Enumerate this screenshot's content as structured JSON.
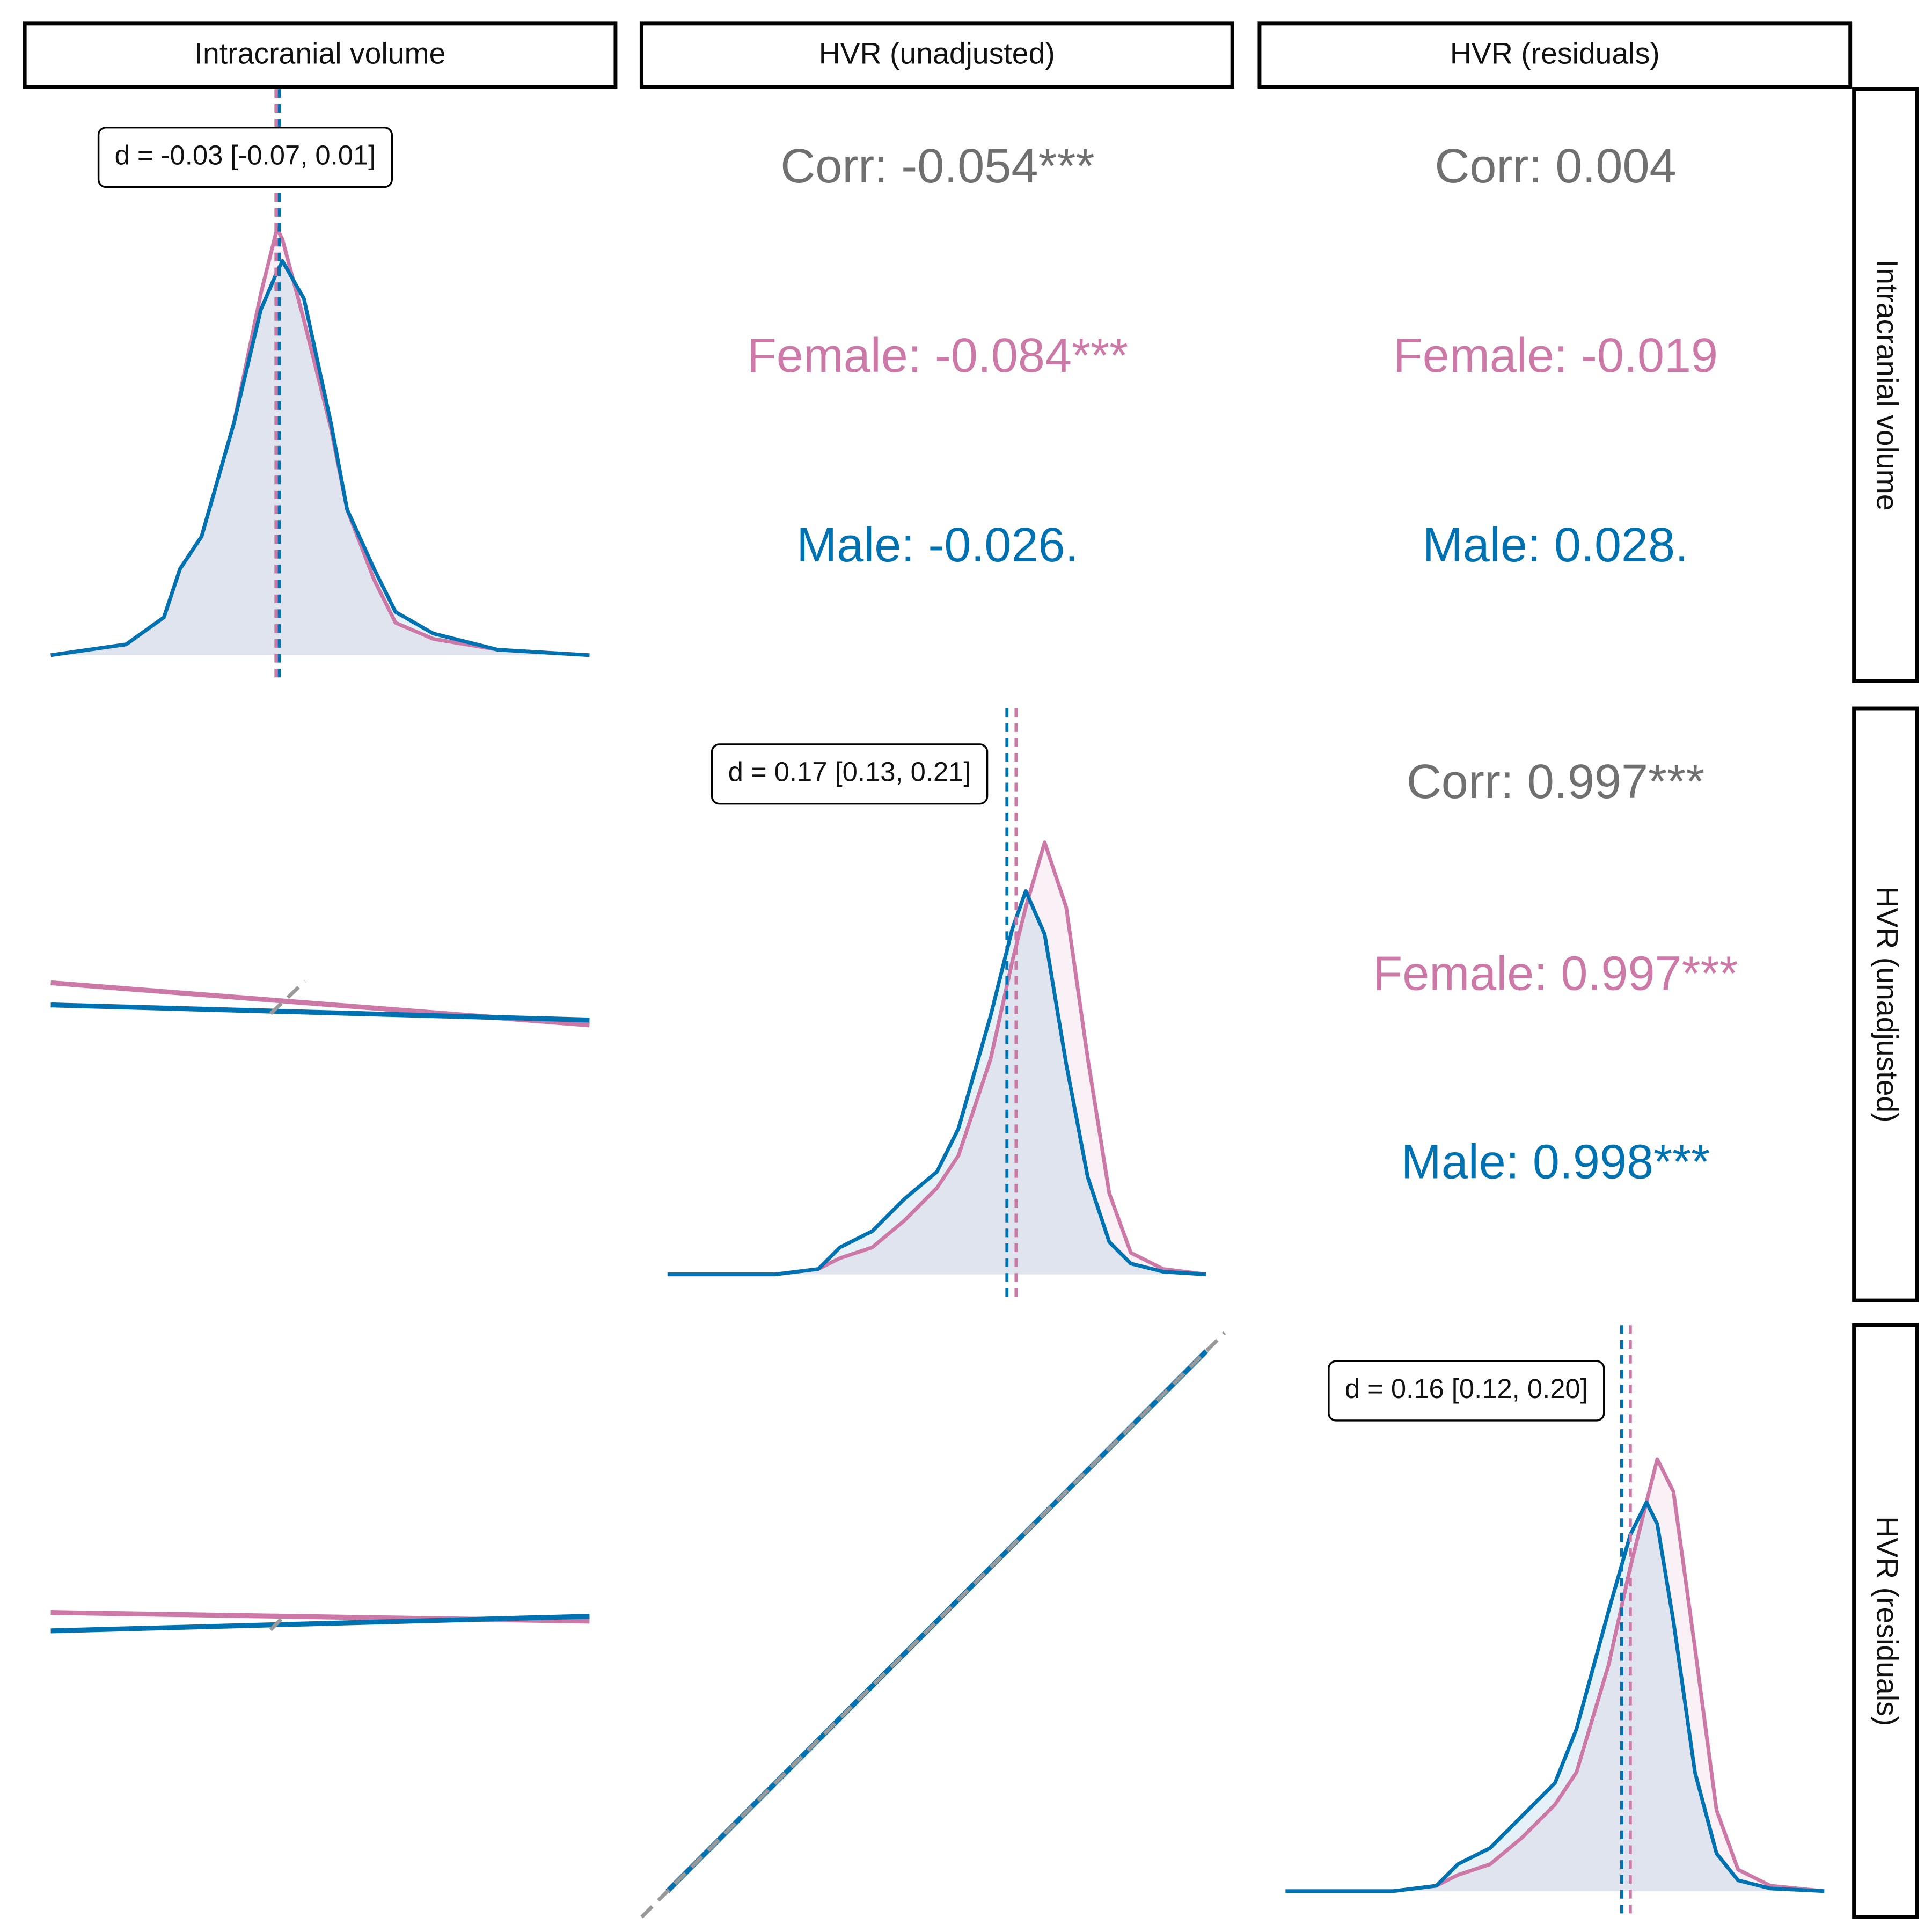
{
  "variables": [
    "Intracranial volume",
    "HVR (unadjusted)",
    "HVR (residuals)"
  ],
  "chart_data": [
    {
      "type": "density",
      "annotation": "d = -0.03 [-0.07, 0.01]",
      "xlim": [
        0,
        1
      ],
      "ylim": [
        0,
        1
      ],
      "x": [
        0,
        0.14,
        0.21,
        0.24,
        0.28,
        0.34,
        0.39,
        0.42,
        0.43,
        0.47,
        0.52,
        0.55,
        0.6,
        0.64,
        0.71,
        0.83,
        1
      ],
      "series": [
        {
          "color": "#cc79a7",
          "mean": 0.418,
          "values": [
            0,
            0.02,
            0.07,
            0.16,
            0.22,
            0.43,
            0.67,
            0.79,
            0.77,
            0.62,
            0.42,
            0.27,
            0.14,
            0.06,
            0.03,
            0.01,
            0
          ]
        },
        {
          "color": "#0072b2",
          "mean": 0.424,
          "values": [
            0,
            0.02,
            0.07,
            0.16,
            0.22,
            0.43,
            0.64,
            0.71,
            0.73,
            0.66,
            0.43,
            0.27,
            0.16,
            0.08,
            0.04,
            0.01,
            0
          ]
        }
      ]
    },
    {
      "type": "correlation",
      "lines": [
        {
          "text": "Corr: -0.054***",
          "color": "#707070"
        },
        {
          "text": "Female: -0.084***",
          "color": "#cc79a7"
        },
        {
          "text": "Male: -0.026.",
          "color": "#0072b2"
        }
      ]
    },
    {
      "type": "correlation",
      "lines": [
        {
          "text": "Corr: 0.004",
          "color": "#707070"
        },
        {
          "text": "Female: -0.019",
          "color": "#cc79a7"
        },
        {
          "text": "Male: 0.028.",
          "color": "#0072b2"
        }
      ]
    },
    {
      "type": "line",
      "xlim": [
        0,
        1
      ],
      "ylim": [
        0,
        1
      ],
      "reference": {
        "color": "#999999",
        "x": [
          0.408,
          0.472
        ],
        "values": [
          0.483,
          0.543
        ]
      },
      "series": [
        {
          "color": "#cc79a7",
          "x": [
            0,
            1
          ],
          "values": [
            0.54,
            0.462
          ]
        },
        {
          "color": "#0072b2",
          "x": [
            0,
            1
          ],
          "values": [
            0.499,
            0.471
          ]
        }
      ]
    },
    {
      "type": "density",
      "annotation": "d = 0.17 [0.13, 0.21]",
      "xlim": [
        0,
        1
      ],
      "ylim": [
        0,
        1
      ],
      "x": [
        0,
        0.2,
        0.28,
        0.32,
        0.38,
        0.44,
        0.5,
        0.54,
        0.6,
        0.64,
        0.665,
        0.7,
        0.74,
        0.78,
        0.82,
        0.86,
        0.92,
        1
      ],
      "series": [
        {
          "color": "#cc79a7",
          "mean": 0.647,
          "values": [
            0,
            0,
            0.01,
            0.03,
            0.05,
            0.1,
            0.16,
            0.22,
            0.4,
            0.58,
            0.68,
            0.8,
            0.68,
            0.4,
            0.15,
            0.04,
            0.01,
            0
          ]
        },
        {
          "color": "#0072b2",
          "mean": 0.63,
          "values": [
            0,
            0,
            0.01,
            0.05,
            0.08,
            0.14,
            0.19,
            0.27,
            0.48,
            0.64,
            0.71,
            0.63,
            0.39,
            0.18,
            0.06,
            0.02,
            0.005,
            0
          ]
        }
      ]
    },
    {
      "type": "correlation",
      "lines": [
        {
          "text": "Corr: 0.997***",
          "color": "#707070"
        },
        {
          "text": "Female: 0.997***",
          "color": "#cc79a7"
        },
        {
          "text": "Male: 0.998***",
          "color": "#0072b2"
        }
      ]
    },
    {
      "type": "line",
      "xlim": [
        0,
        1
      ],
      "ylim": [
        0,
        1
      ],
      "reference": {
        "color": "#999999",
        "x": [
          0.408,
          0.431
        ],
        "values": [
          0.484,
          0.507
        ]
      },
      "series": [
        {
          "color": "#cc79a7",
          "x": [
            0,
            1
          ],
          "values": [
            0.516,
            0.5
          ]
        },
        {
          "color": "#0072b2",
          "x": [
            0,
            1
          ],
          "values": [
            0.482,
            0.509
          ]
        }
      ]
    },
    {
      "type": "line",
      "xlim": [
        0,
        1
      ],
      "ylim": [
        0,
        1
      ],
      "reference": {
        "color": "#999999",
        "x": [
          -0.048,
          1.034
        ],
        "values": [
          -0.048,
          1.034
        ]
      },
      "series": [
        {
          "color": "#cc79a7",
          "x": [
            0,
            1
          ],
          "values": [
            0,
            1
          ]
        },
        {
          "color": "#0072b2",
          "x": [
            0,
            1
          ],
          "values": [
            0,
            1
          ]
        }
      ]
    },
    {
      "type": "density",
      "annotation": "d = 0.16 [0.12, 0.20]",
      "xlim": [
        0,
        1
      ],
      "ylim": [
        0,
        1
      ],
      "x": [
        0,
        0.2,
        0.28,
        0.32,
        0.38,
        0.44,
        0.5,
        0.54,
        0.6,
        0.64,
        0.67,
        0.69,
        0.72,
        0.76,
        0.8,
        0.84,
        0.9,
        1
      ],
      "series": [
        {
          "color": "#cc79a7",
          "mean": 0.64,
          "values": [
            0,
            0,
            0.01,
            0.03,
            0.05,
            0.1,
            0.16,
            0.22,
            0.42,
            0.6,
            0.72,
            0.8,
            0.74,
            0.45,
            0.15,
            0.04,
            0.01,
            0
          ]
        },
        {
          "color": "#0072b2",
          "mean": 0.624,
          "values": [
            0,
            0,
            0.01,
            0.05,
            0.08,
            0.14,
            0.2,
            0.3,
            0.52,
            0.66,
            0.72,
            0.68,
            0.5,
            0.22,
            0.07,
            0.02,
            0.005,
            0
          ]
        }
      ]
    }
  ]
}
